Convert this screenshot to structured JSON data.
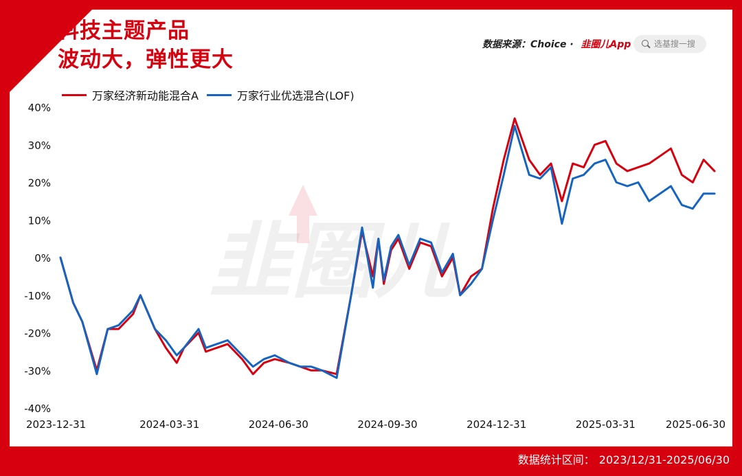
{
  "header": {
    "title_line1": "科技主题产品",
    "title_line2": "波动大，弹性更大",
    "source_label": "数据来源：Choice · ",
    "source_brand": "韭圈儿App",
    "search_placeholder": "选基搜一搜"
  },
  "watermark": "韭圈儿",
  "footer": {
    "label": "数据统计区间：",
    "range": "2023/12/31-2025/06/30"
  },
  "colors": {
    "red": "#d7000f",
    "blue": "#1565c0"
  },
  "chart_data": {
    "type": "line",
    "title": "",
    "xlabel": "",
    "ylabel": "",
    "ylim": [
      -40,
      40
    ],
    "yticks": [
      40,
      30,
      20,
      10,
      0,
      -10,
      -20,
      -30,
      -40
    ],
    "ytick_labels": [
      "40%",
      "30%",
      "20%",
      "10%",
      "0%",
      "-10%",
      "-20%",
      "-30%",
      "-40%"
    ],
    "xlim": [
      0,
      18
    ],
    "xticks": [
      0,
      3,
      6,
      9,
      12,
      15,
      18
    ],
    "xtick_labels": [
      "2023-12-31",
      "2024-03-31",
      "2024-06-30",
      "2024-09-30",
      "2024-12-31",
      "2025-03-31",
      "2025-06-30"
    ],
    "legend_position": "top-left",
    "grid": false,
    "series": [
      {
        "name": "万家经济新动能混合A",
        "color": "#d7000f",
        "x": [
          0,
          0.35,
          0.6,
          1.0,
          1.3,
          1.6,
          2.0,
          2.2,
          2.6,
          2.9,
          3.2,
          3.4,
          3.8,
          4.0,
          4.3,
          4.6,
          5.0,
          5.3,
          5.6,
          5.9,
          6.3,
          6.6,
          6.9,
          7.2,
          7.6,
          8.0,
          8.3,
          8.6,
          8.75,
          8.9,
          9.1,
          9.3,
          9.6,
          9.9,
          10.2,
          10.5,
          10.8,
          11.0,
          11.3,
          11.6,
          11.9,
          12.2,
          12.5,
          12.9,
          13.2,
          13.5,
          13.8,
          14.1,
          14.4,
          14.7,
          15.0,
          15.3,
          15.6,
          15.9,
          16.2,
          16.5,
          16.8,
          17.1,
          17.4,
          17.7,
          18.0
        ],
        "y": [
          0,
          -12,
          -17,
          -30,
          -19,
          -19,
          -15,
          -10,
          -19,
          -24,
          -28,
          -24,
          -20,
          -25,
          -24,
          -23,
          -27,
          -31,
          -28,
          -27,
          -28,
          -29,
          -30,
          -30,
          -31,
          -10,
          7,
          -5,
          5,
          -7,
          2,
          5,
          -3,
          4,
          3,
          -5,
          0,
          -10,
          -5,
          -3,
          13,
          26,
          37,
          26,
          22,
          25,
          15,
          25,
          24,
          30,
          31,
          25,
          23,
          24,
          25,
          27,
          29,
          22,
          20,
          26,
          23
        ]
      },
      {
        "name": "万家行业优选混合(LOF)",
        "color": "#1565c0",
        "x": [
          0,
          0.35,
          0.6,
          1.0,
          1.3,
          1.6,
          2.0,
          2.2,
          2.6,
          2.9,
          3.2,
          3.4,
          3.8,
          4.0,
          4.3,
          4.6,
          5.0,
          5.3,
          5.6,
          5.9,
          6.3,
          6.6,
          6.9,
          7.2,
          7.6,
          8.0,
          8.3,
          8.6,
          8.75,
          8.9,
          9.1,
          9.3,
          9.6,
          9.9,
          10.2,
          10.5,
          10.8,
          11.0,
          11.3,
          11.6,
          11.9,
          12.2,
          12.5,
          12.9,
          13.2,
          13.5,
          13.8,
          14.1,
          14.4,
          14.7,
          15.0,
          15.3,
          15.6,
          15.9,
          16.2,
          16.5,
          16.8,
          17.1,
          17.4,
          17.7,
          18.0
        ],
        "y": [
          0,
          -12,
          -17,
          -31,
          -19,
          -18,
          -14,
          -10,
          -19,
          -22,
          -26,
          -24,
          -19,
          -24,
          -23,
          -22,
          -26,
          -29,
          -27,
          -26,
          -28,
          -29,
          -29,
          -30,
          -32,
          -10,
          8,
          -8,
          5,
          -6,
          3,
          6,
          -2,
          5,
          4,
          -4,
          1,
          -10,
          -7,
          -3,
          10,
          22,
          35,
          22,
          21,
          24,
          9,
          21,
          22,
          25,
          26,
          20,
          19,
          20,
          15,
          17,
          19,
          14,
          13,
          17,
          17
        ]
      }
    ]
  }
}
